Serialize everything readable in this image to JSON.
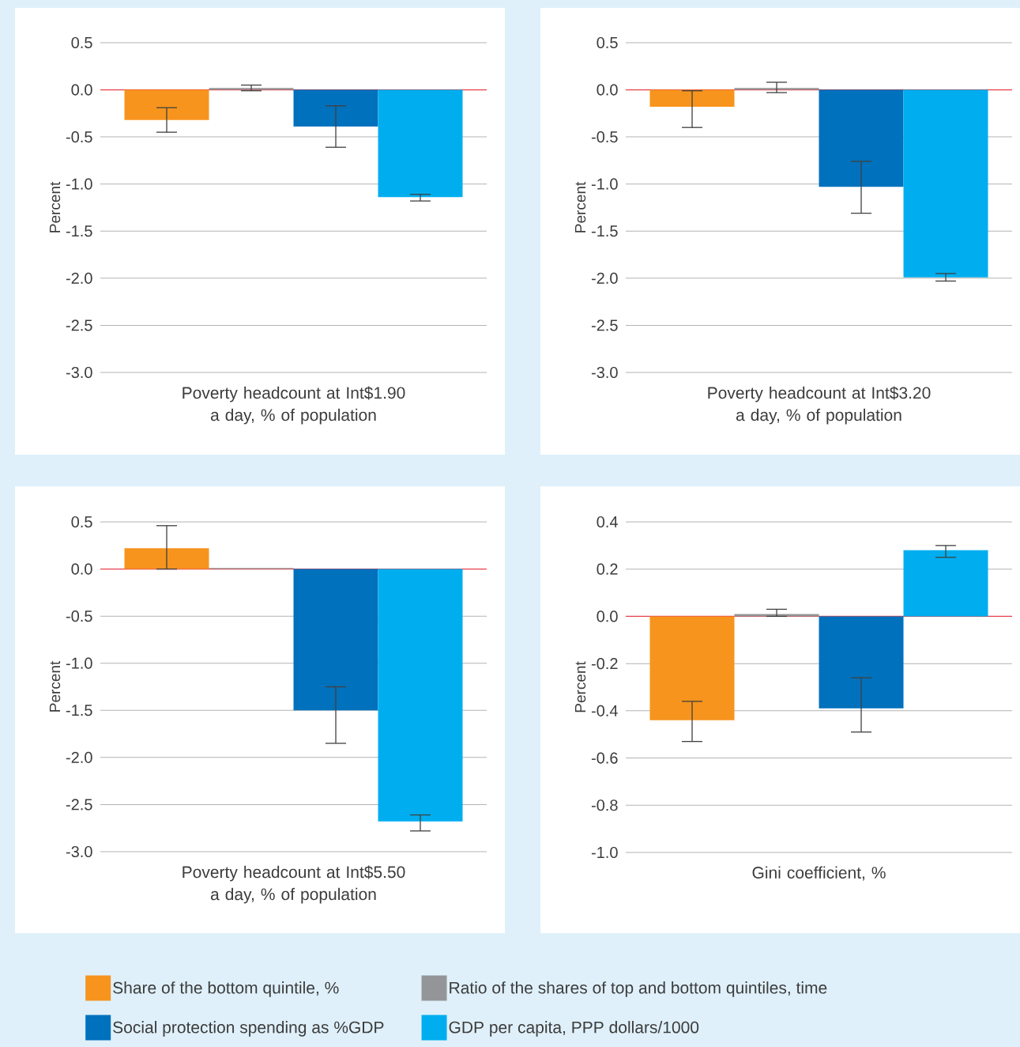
{
  "chart_data": [
    {
      "type": "bar",
      "categories": [
        "Poverty headcount at Int$1.90 a day, % of population"
      ],
      "ylabel": "Percent",
      "ylim": [
        -3.0,
        0.5
      ],
      "yticks": [
        0.5,
        {
          "value": 0,
          "label": "0.0"
        },
        -0.5,
        {
          "value": -1,
          "label": "-1.0"
        },
        -1.5,
        {
          "value": -2,
          "label": "-2.0"
        },
        -2.5,
        {
          "value": -3,
          "label": "-3.0"
        }
      ],
      "grid": "y",
      "ref_lines": [
        {
          "axis": "y",
          "value": 0,
          "color": "#e8404a"
        }
      ],
      "series": [
        {
          "color": "#f7941d",
          "values": [
            -0.32
          ],
          "errors": [
            [
              -0.45,
              -0.19
            ]
          ]
        },
        {
          "color": "#939598",
          "values": [
            0.02
          ],
          "errors": [
            [
              -0.01,
              0.05
            ]
          ]
        },
        {
          "color": "#0071bc",
          "values": [
            -0.39
          ],
          "errors": [
            [
              -0.61,
              -0.17
            ]
          ]
        },
        {
          "color": "#00aeef",
          "values": [
            -1.14
          ],
          "errors": [
            [
              -1.18,
              -1.11
            ]
          ]
        }
      ]
    },
    {
      "type": "bar",
      "categories": [
        "Poverty headcount at Int$3.20 a day, % of population"
      ],
      "ylabel": "Percent",
      "ylim": [
        -3.0,
        0.5
      ],
      "yticks": [
        0.5,
        {
          "value": 0,
          "label": "0.0"
        },
        -0.5,
        {
          "value": -1,
          "label": "-1.0"
        },
        -1.5,
        {
          "value": -2,
          "label": "-2.0"
        },
        -2.5,
        {
          "value": -3,
          "label": "-3.0"
        }
      ],
      "grid": "y",
      "ref_lines": [
        {
          "axis": "y",
          "value": 0,
          "color": "#e8404a"
        }
      ],
      "series": [
        {
          "color": "#f7941d",
          "values": [
            -0.18
          ],
          "errors": [
            [
              -0.4,
              -0.01
            ]
          ]
        },
        {
          "color": "#939598",
          "values": [
            0.02
          ],
          "errors": [
            [
              -0.03,
              0.08
            ]
          ]
        },
        {
          "color": "#0071bc",
          "values": [
            -1.03
          ],
          "errors": [
            [
              -1.31,
              -0.76
            ]
          ]
        },
        {
          "color": "#00aeef",
          "values": [
            -1.99
          ],
          "errors": [
            [
              -2.03,
              -1.95
            ]
          ]
        }
      ]
    },
    {
      "type": "bar",
      "categories": [
        "Poverty headcount at Int$5.50 a day, % of population"
      ],
      "ylabel": "Percent",
      "ylim": [
        -3.0,
        0.5
      ],
      "yticks": [
        0.5,
        {
          "value": 0,
          "label": "0.0"
        },
        -0.5,
        {
          "value": -1,
          "label": "-1.0"
        },
        -1.5,
        {
          "value": -2,
          "label": "-2.0"
        },
        -2.5,
        {
          "value": -3,
          "label": "-3.0"
        }
      ],
      "grid": "y",
      "legend": "bottom",
      "ref_lines": [
        {
          "axis": "y",
          "value": 0,
          "color": "#e8404a"
        }
      ],
      "series": [
        {
          "name": "Share of the bottom quintile, %",
          "color": "#f7941d",
          "values": [
            0.22
          ],
          "errors": [
            [
              0.0,
              0.46
            ]
          ]
        },
        {
          "name": "Ratio of the shares of top and bottom quintiles, time",
          "color": "#939598",
          "values": [
            0.01
          ],
          "errors": [
            null
          ]
        },
        {
          "name": "Social protection spending as %GDP",
          "color": "#0071bc",
          "values": [
            -1.5
          ],
          "errors": [
            [
              -1.85,
              -1.25
            ]
          ]
        },
        {
          "name": "GDP per capita, PPP dollars/1000",
          "color": "#00aeef",
          "values": [
            -2.68
          ],
          "errors": [
            [
              -2.78,
              -2.61
            ]
          ]
        }
      ]
    },
    {
      "type": "bar",
      "categories": [
        "Gini coefficient, %"
      ],
      "ylabel": "Percent",
      "ylim": [
        -1.0,
        0.4
      ],
      "yticks": [
        0.4,
        0.2,
        {
          "value": 0,
          "label": "0.0"
        },
        -0.2,
        -0.4,
        -0.6,
        -0.8,
        {
          "value": -1,
          "label": "-1.0"
        }
      ],
      "grid": "y",
      "ref_lines": [
        {
          "axis": "y",
          "value": 0,
          "color": "#e8404a"
        }
      ],
      "series": [
        {
          "color": "#f7941d",
          "values": [
            -0.44
          ],
          "errors": [
            [
              -0.53,
              -0.36
            ]
          ]
        },
        {
          "color": "#939598",
          "values": [
            0.01
          ],
          "errors": [
            [
              0.0,
              0.03
            ]
          ]
        },
        {
          "color": "#0071bc",
          "values": [
            -0.39
          ],
          "errors": [
            [
              -0.49,
              -0.26
            ]
          ]
        },
        {
          "color": "#00aeef",
          "values": [
            0.28
          ],
          "errors": [
            [
              0.25,
              0.3
            ]
          ]
        }
      ]
    }
  ]
}
